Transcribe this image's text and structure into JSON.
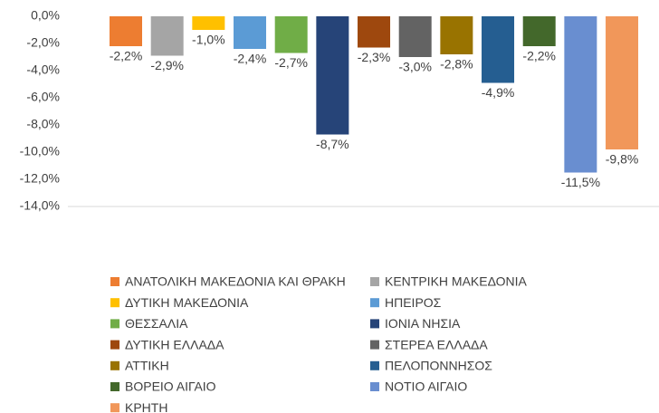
{
  "chart_data": {
    "type": "bar",
    "categories": [
      null
    ],
    "series": [
      {
        "name": "ΑΝΑΤΟΛΙΚΗ ΜΑΚΕΔΟΝΙΑ ΚΑΙ ΘΡΑΚΗ",
        "color": "#ed7d31",
        "values": [
          -2.2
        ],
        "value_labels": [
          "-2,2%"
        ]
      },
      {
        "name": "ΚΕΝΤΡΙΚΗ ΜΑΚΕΔΟΝΙΑ",
        "color": "#a5a5a5",
        "values": [
          -2.9
        ],
        "value_labels": [
          "-2,9%"
        ]
      },
      {
        "name": "ΔΥΤΙΚΗ ΜΑΚΕΔΟΝΙΑ",
        "color": "#ffc000",
        "values": [
          -1.0
        ],
        "value_labels": [
          "-1,0%"
        ]
      },
      {
        "name": "ΗΠΕΙΡΟΣ",
        "color": "#5b9bd5",
        "values": [
          -2.4
        ],
        "value_labels": [
          "-2,4%"
        ]
      },
      {
        "name": "ΘΕΣΣΑΛΙΑ",
        "color": "#70ad47",
        "values": [
          -2.7
        ],
        "value_labels": [
          "-2,7%"
        ]
      },
      {
        "name": "ΙΟΝΙΑ ΝΗΣΙΑ",
        "color": "#264478",
        "values": [
          -8.7
        ],
        "value_labels": [
          "-8,7%"
        ]
      },
      {
        "name": "ΔΥΤΙΚΗ ΕΛΛΑΔΑ",
        "color": "#9e480e",
        "values": [
          -2.3
        ],
        "value_labels": [
          "-2,3%"
        ]
      },
      {
        "name": "ΣΤΕΡΕΑ ΕΛΛΑΔΑ",
        "color": "#636363",
        "values": [
          -3.0
        ],
        "value_labels": [
          "-3,0%"
        ]
      },
      {
        "name": "ΑΤΤΙΚΗ",
        "color": "#997300",
        "values": [
          -2.8
        ],
        "value_labels": [
          "-2,8%"
        ]
      },
      {
        "name": "ΠΕΛΟΠΟΝΝΗΣΟΣ",
        "color": "#255e91",
        "values": [
          -4.9
        ],
        "value_labels": [
          "-4,9%"
        ]
      },
      {
        "name": "ΒΟΡΕΙΟ ΑΙΓΑΙΟ",
        "color": "#43682b",
        "values": [
          -2.2
        ],
        "value_labels": [
          "-2,2%"
        ]
      },
      {
        "name": "ΝΟΤΙΟ ΑΙΓΑΙΟ",
        "color": "#698ed0",
        "values": [
          -11.5
        ],
        "value_labels": [
          "-11,5%"
        ]
      },
      {
        "name": "ΚΡΗΤΗ",
        "color": "#f1975a",
        "values": [
          -9.8
        ],
        "value_labels": [
          "-9,8%"
        ]
      }
    ],
    "ylim": [
      -14,
      0
    ],
    "yticks": [
      {
        "value": 0,
        "label": "0,0%"
      },
      {
        "value": -2,
        "label": "-2,0%"
      },
      {
        "value": -4,
        "label": "-4,0%"
      },
      {
        "value": -6,
        "label": "-6,0%"
      },
      {
        "value": -8,
        "label": "-8,0%"
      },
      {
        "value": -10,
        "label": "-10,0%"
      },
      {
        "value": -12,
        "label": "-12,0%"
      },
      {
        "value": -14,
        "label": "-14,0%"
      }
    ],
    "grid": false
  }
}
